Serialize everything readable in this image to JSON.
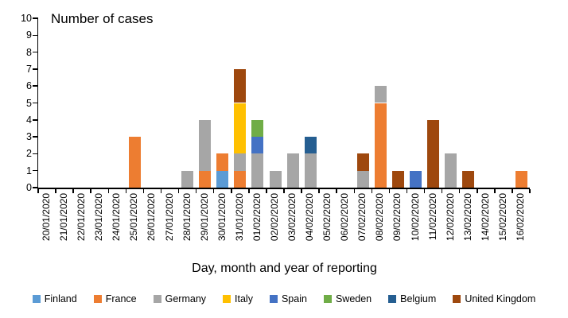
{
  "chart_data": {
    "type": "bar",
    "stacked": true,
    "title": "Number of cases",
    "xlabel": "Day, month and year of reporting",
    "ylabel": "",
    "ylim": [
      0,
      10
    ],
    "ytick_interval": 1,
    "grid": false,
    "legend_position": "bottom",
    "categories": [
      "20/01/2020",
      "21/01/2020",
      "22/01/2020",
      "23/01/2020",
      "24/01/2020",
      "25/01/2020",
      "26/01/2020",
      "27/01/2020",
      "28/01/2020",
      "29/01/2020",
      "30/01/2020",
      "31/01/2020",
      "01/02/2020",
      "02/02/2020",
      "03/02/2020",
      "04/02/2020",
      "05/02/2020",
      "06/02/2020",
      "07/02/2020",
      "08/02/2020",
      "09/02/2020",
      "10/02/2020",
      "11/02/2020",
      "12/02/2020",
      "13/02/2020",
      "14/02/2020",
      "15/02/2020",
      "16/02/2020"
    ],
    "series": [
      {
        "name": "Finland",
        "color": "#5B9BD5",
        "values": [
          0,
          0,
          0,
          0,
          0,
          0,
          0,
          0,
          0,
          0,
          1,
          0,
          0,
          0,
          0,
          0,
          0,
          0,
          0,
          0,
          0,
          0,
          0,
          0,
          0,
          0,
          0,
          0
        ]
      },
      {
        "name": "France",
        "color": "#ED7D31",
        "values": [
          0,
          0,
          0,
          0,
          0,
          3,
          0,
          0,
          0,
          1,
          1,
          1,
          0,
          0,
          0,
          0,
          0,
          0,
          0,
          5,
          0,
          0,
          0,
          0,
          0,
          0,
          0,
          1
        ]
      },
      {
        "name": "Germany",
        "color": "#A6A6A6",
        "values": [
          0,
          0,
          0,
          0,
          0,
          0,
          0,
          0,
          1,
          3,
          0,
          1,
          2,
          1,
          2,
          2,
          0,
          0,
          1,
          1,
          0,
          0,
          0,
          2,
          0,
          0,
          0,
          0
        ]
      },
      {
        "name": "Italy",
        "color": "#FFC000",
        "values": [
          0,
          0,
          0,
          0,
          0,
          0,
          0,
          0,
          0,
          0,
          0,
          3,
          0,
          0,
          0,
          0,
          0,
          0,
          0,
          0,
          0,
          0,
          0,
          0,
          0,
          0,
          0,
          0
        ]
      },
      {
        "name": "Spain",
        "color": "#4472C4",
        "values": [
          0,
          0,
          0,
          0,
          0,
          0,
          0,
          0,
          0,
          0,
          0,
          0,
          1,
          0,
          0,
          0,
          0,
          0,
          0,
          0,
          0,
          1,
          0,
          0,
          0,
          0,
          0,
          0
        ]
      },
      {
        "name": "Sweden",
        "color": "#70AD47",
        "values": [
          0,
          0,
          0,
          0,
          0,
          0,
          0,
          0,
          0,
          0,
          0,
          0,
          1,
          0,
          0,
          0,
          0,
          0,
          0,
          0,
          0,
          0,
          0,
          0,
          0,
          0,
          0,
          0
        ]
      },
      {
        "name": "Belgium",
        "color": "#255E91",
        "values": [
          0,
          0,
          0,
          0,
          0,
          0,
          0,
          0,
          0,
          0,
          0,
          0,
          0,
          0,
          0,
          1,
          0,
          0,
          0,
          0,
          0,
          0,
          0,
          0,
          0,
          0,
          0,
          0
        ]
      },
      {
        "name": "United Kingdom",
        "color": "#9E480E",
        "values": [
          0,
          0,
          0,
          0,
          0,
          0,
          0,
          0,
          0,
          0,
          0,
          2,
          0,
          0,
          0,
          0,
          0,
          0,
          1,
          0,
          1,
          0,
          4,
          0,
          1,
          0,
          0,
          0
        ]
      }
    ]
  }
}
